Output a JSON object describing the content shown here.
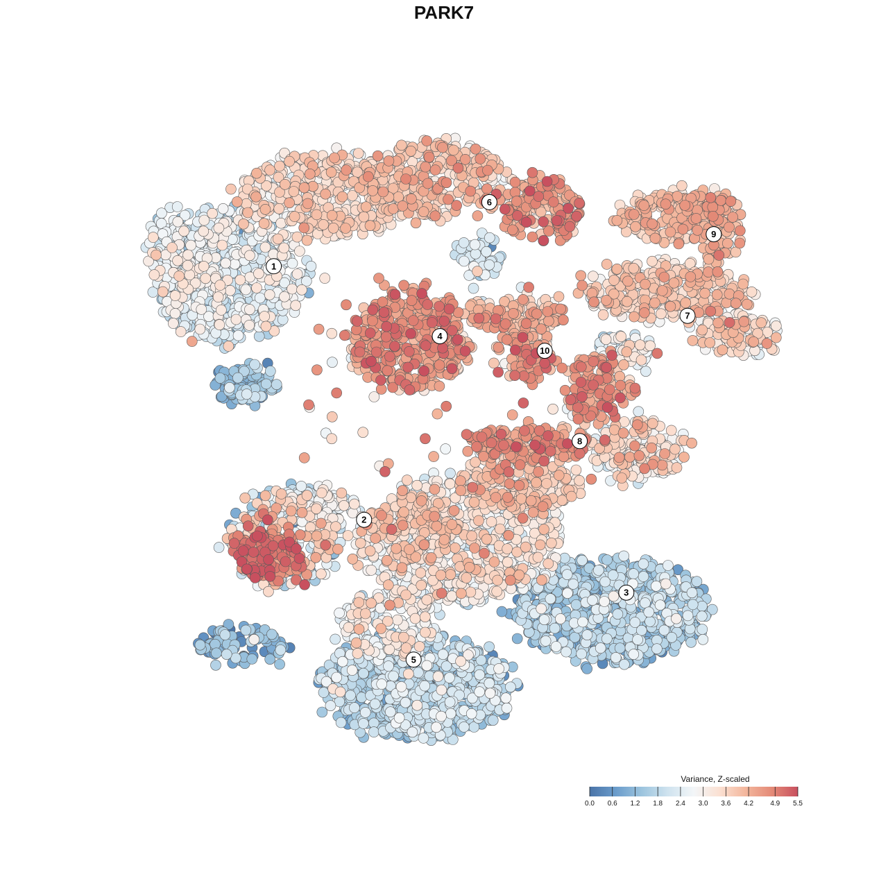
{
  "chart_data": {
    "type": "scatter",
    "title": "PARK7",
    "xlabel": "",
    "ylabel": "",
    "grid": false,
    "point_count_note": "dense cells embedding; points generated per cluster region",
    "color_scale": {
      "title": "Variance, Z-scaled",
      "min": 0.0,
      "max": 5.5,
      "ticks": [
        "0.0",
        "0.6",
        "1.2",
        "1.8",
        "2.4",
        "3.0",
        "3.6",
        "4.2",
        "4.9",
        "5.5"
      ],
      "colors": [
        "#4a74a8",
        "#6a9ccb",
        "#9cc4de",
        "#cfe3ef",
        "#f3f6f8",
        "#fbe0d2",
        "#f3b69c",
        "#e48a77",
        "#c8505f"
      ],
      "legend_placement": "bottom-right"
    },
    "clusters": [
      {
        "id": "1",
        "label": "1",
        "cx": -6.2,
        "cy": 6.1,
        "mean": 2.6
      },
      {
        "id": "2",
        "label": "2",
        "cx": -3.1,
        "cy": -2.6,
        "mean": 2.9
      },
      {
        "id": "3",
        "label": "3",
        "cx": 5.9,
        "cy": -5.1,
        "mean": 1.5
      },
      {
        "id": "4",
        "label": "4",
        "cx": -0.5,
        "cy": 3.7,
        "mean": 4.3
      },
      {
        "id": "5",
        "label": "5",
        "cx": -1.4,
        "cy": -7.4,
        "mean": 1.6
      },
      {
        "id": "6",
        "label": "6",
        "cx": 1.2,
        "cy": 8.3,
        "mean": 3.7
      },
      {
        "id": "7",
        "label": "7",
        "cx": 8.0,
        "cy": 4.4,
        "mean": 3.6
      },
      {
        "id": "8",
        "label": "8",
        "cx": 4.3,
        "cy": 0.1,
        "mean": 4.2
      },
      {
        "id": "9",
        "label": "9",
        "cx": 8.9,
        "cy": 7.2,
        "mean": 3.9
      },
      {
        "id": "10",
        "label": "10",
        "cx": 3.1,
        "cy": 3.2,
        "mean": 3.8
      }
    ]
  }
}
